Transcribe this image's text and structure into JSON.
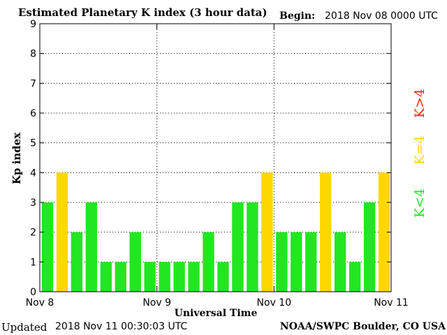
{
  "header": {
    "title": "Estimated Planetary K index (3 hour data)",
    "begin_label": "Begin:",
    "begin_value": "2018 Nov 08 0000 UTC"
  },
  "footer": {
    "updated_label": "Updated",
    "updated_value": "2018 Nov 11 00:30:03 UTC",
    "credit": "NOAA/SWPC Boulder, CO USA"
  },
  "legend": {
    "high": {
      "label": "K>4",
      "color": "#ff2a00"
    },
    "equal": {
      "label": "K=4",
      "color": "#ffd700"
    },
    "low": {
      "label": "K<4",
      "color": "#22e622"
    }
  },
  "chart_data": {
    "type": "bar",
    "title": "Estimated Planetary K index (3 hour data)",
    "xlabel": "Universal Time",
    "ylabel": "Kp index",
    "ylim": [
      0,
      9
    ],
    "yticks": [
      "0",
      "1",
      "2",
      "3",
      "4",
      "5",
      "6",
      "7",
      "8",
      "9"
    ],
    "xticks": [
      "Nov 8",
      "Nov 9",
      "Nov 10",
      "Nov 11"
    ],
    "grid": true,
    "bars_per_day": 8,
    "values": [
      3,
      4,
      2,
      3,
      1,
      1,
      2,
      1,
      1,
      1,
      1,
      2,
      1,
      3,
      3,
      4,
      2,
      2,
      2,
      4,
      2,
      1,
      3,
      4
    ],
    "colors": {
      "below4": "#22e622",
      "equal4": "#ffd700",
      "above4": "#ff2a00"
    }
  }
}
